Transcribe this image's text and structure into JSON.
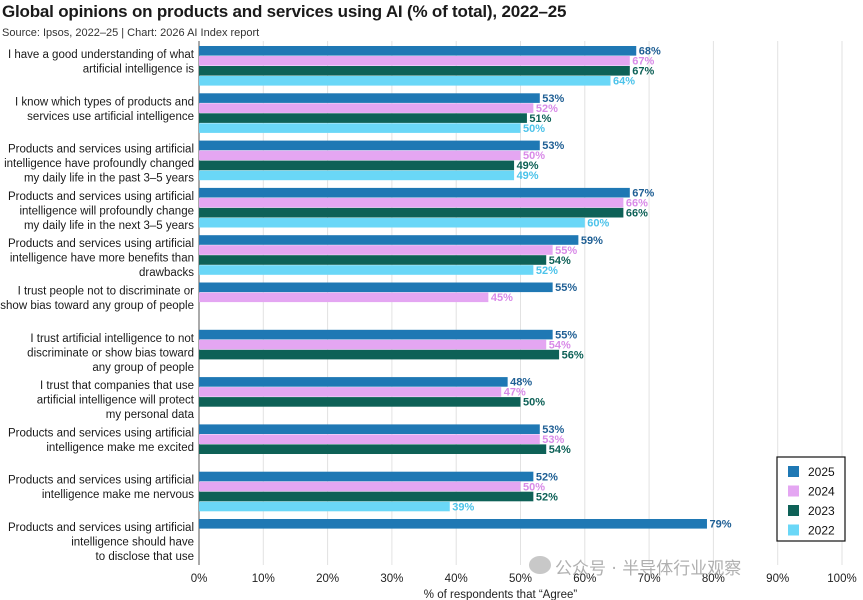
{
  "title": "Global opinions on products and services using AI (% of total), 2022–25",
  "subtitle": "Source: Ipsos, 2022–25 | Chart: 2026 AI Index report",
  "watermark": "公众号 · 半导体行业观察",
  "chart_data": {
    "type": "bar",
    "orientation": "horizontal",
    "xlabel": "% of respondents that “Agree”",
    "xlim": [
      0,
      100
    ],
    "xticks": [
      "0%",
      "10%",
      "20%",
      "30%",
      "40%",
      "50%",
      "60%",
      "70%",
      "80%",
      "90%",
      "100%"
    ],
    "legend_position": "bottom-right",
    "grid": "vertical",
    "categories": [
      [
        "I have a good understanding of what",
        "artificial intelligence is"
      ],
      [
        "I know which types of products and",
        "services use artificial intelligence"
      ],
      [
        "Products and services using artificial",
        "intelligence have profoundly changed",
        "my daily life in the past 3–5 years"
      ],
      [
        "Products and services using artificial",
        "intelligence will profoundly change",
        "my daily life in the next 3–5 years"
      ],
      [
        "Products and services using artificial",
        "intelligence have more benefits than",
        "drawbacks"
      ],
      [
        "I trust people not to discriminate or",
        "show bias toward any group of people"
      ],
      [
        "I trust artificial intelligence to not",
        "discriminate or show bias toward",
        "any group of people"
      ],
      [
        "I trust that companies that use",
        "artificial intelligence will protect",
        "my personal data"
      ],
      [
        "Products and services using artificial",
        "intelligence make me excited"
      ],
      [
        "Products and services using artificial",
        "intelligence make me nervous"
      ],
      [
        "Products and services using artificial",
        "intelligence should have",
        "to disclose that use"
      ]
    ],
    "series": [
      {
        "name": "2025",
        "color": "#1f78b4",
        "label_color": "#1f5f94",
        "values": [
          68,
          53,
          53,
          67,
          59,
          55,
          55,
          48,
          53,
          52,
          79
        ]
      },
      {
        "name": "2024",
        "color": "#e4a6f2",
        "label_color": "#d98be8",
        "values": [
          67,
          52,
          50,
          66,
          55,
          45,
          54,
          47,
          53,
          50,
          null
        ]
      },
      {
        "name": "2023",
        "color": "#0e6157",
        "label_color": "#0e6157",
        "values": [
          67,
          51,
          49,
          66,
          54,
          null,
          56,
          50,
          54,
          52,
          null
        ]
      },
      {
        "name": "2022",
        "color": "#6ad7f7",
        "label_color": "#4cc3ea",
        "values": [
          64,
          50,
          49,
          60,
          52,
          null,
          null,
          null,
          null,
          39,
          null
        ]
      }
    ]
  }
}
